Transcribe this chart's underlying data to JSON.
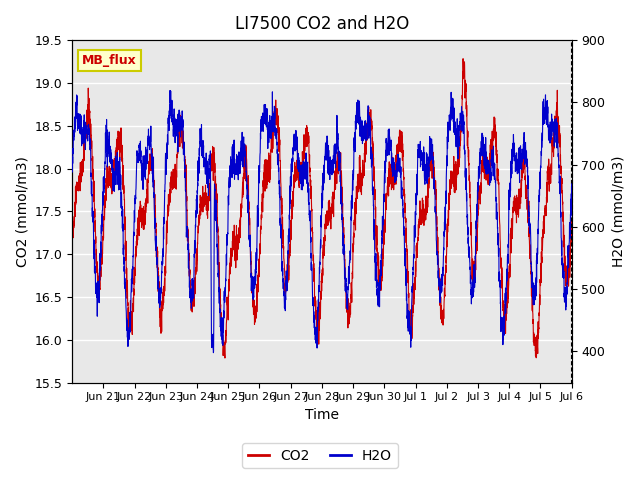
{
  "title": "LI7500 CO2 and H2O",
  "xlabel": "Time",
  "ylabel_left": "CO2 (mmol/m3)",
  "ylabel_right": "H2O (mmol/m3)",
  "ylim_left": [
    15.5,
    19.5
  ],
  "ylim_right": [
    350,
    900
  ],
  "co2_color": "#cc0000",
  "h2o_color": "#0000cc",
  "plot_bg": "#e8e8e8",
  "annotation_text": "MB_flux",
  "annotation_color": "#cc0000",
  "annotation_bg": "#ffffcc",
  "annotation_edge": "#cccc00",
  "xtick_labels": [
    "Jun 21",
    "Jun 22",
    "Jun 23",
    "Jun 24",
    "Jun 25",
    "Jun 26",
    "Jun 27",
    "Jun 28",
    "Jun 29",
    "Jun 30",
    "Jul 1",
    "Jul 2",
    "Jul 3",
    "Jul 4",
    "Jul 5",
    "Jul 6"
  ],
  "n_points": 3600,
  "seed": 42
}
